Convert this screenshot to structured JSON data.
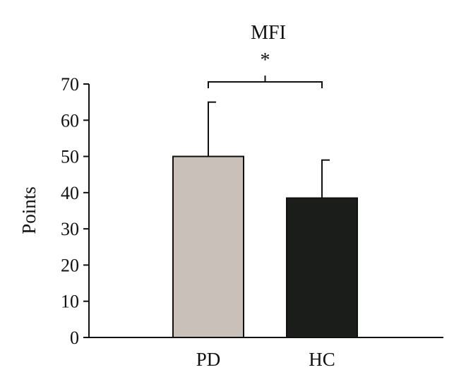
{
  "chart_data": {
    "type": "bar",
    "title": "MFI",
    "xlabel": "",
    "ylabel": "Points",
    "categories": [
      "PD",
      "HC"
    ],
    "values": [
      50,
      38.5
    ],
    "error_upper": [
      65,
      49
    ],
    "ylim": [
      0,
      70
    ],
    "yticks": [
      0,
      10,
      20,
      30,
      40,
      50,
      60,
      70
    ],
    "ytick_labels": [
      "0",
      "10",
      "20",
      "30",
      "40",
      "50",
      "60",
      "70"
    ],
    "bar_colors": [
      "#c9c0b9",
      "#1b1d1a"
    ],
    "significance": {
      "between": [
        "PD",
        "HC"
      ],
      "label": "*"
    },
    "grid": false,
    "legend": "none"
  }
}
